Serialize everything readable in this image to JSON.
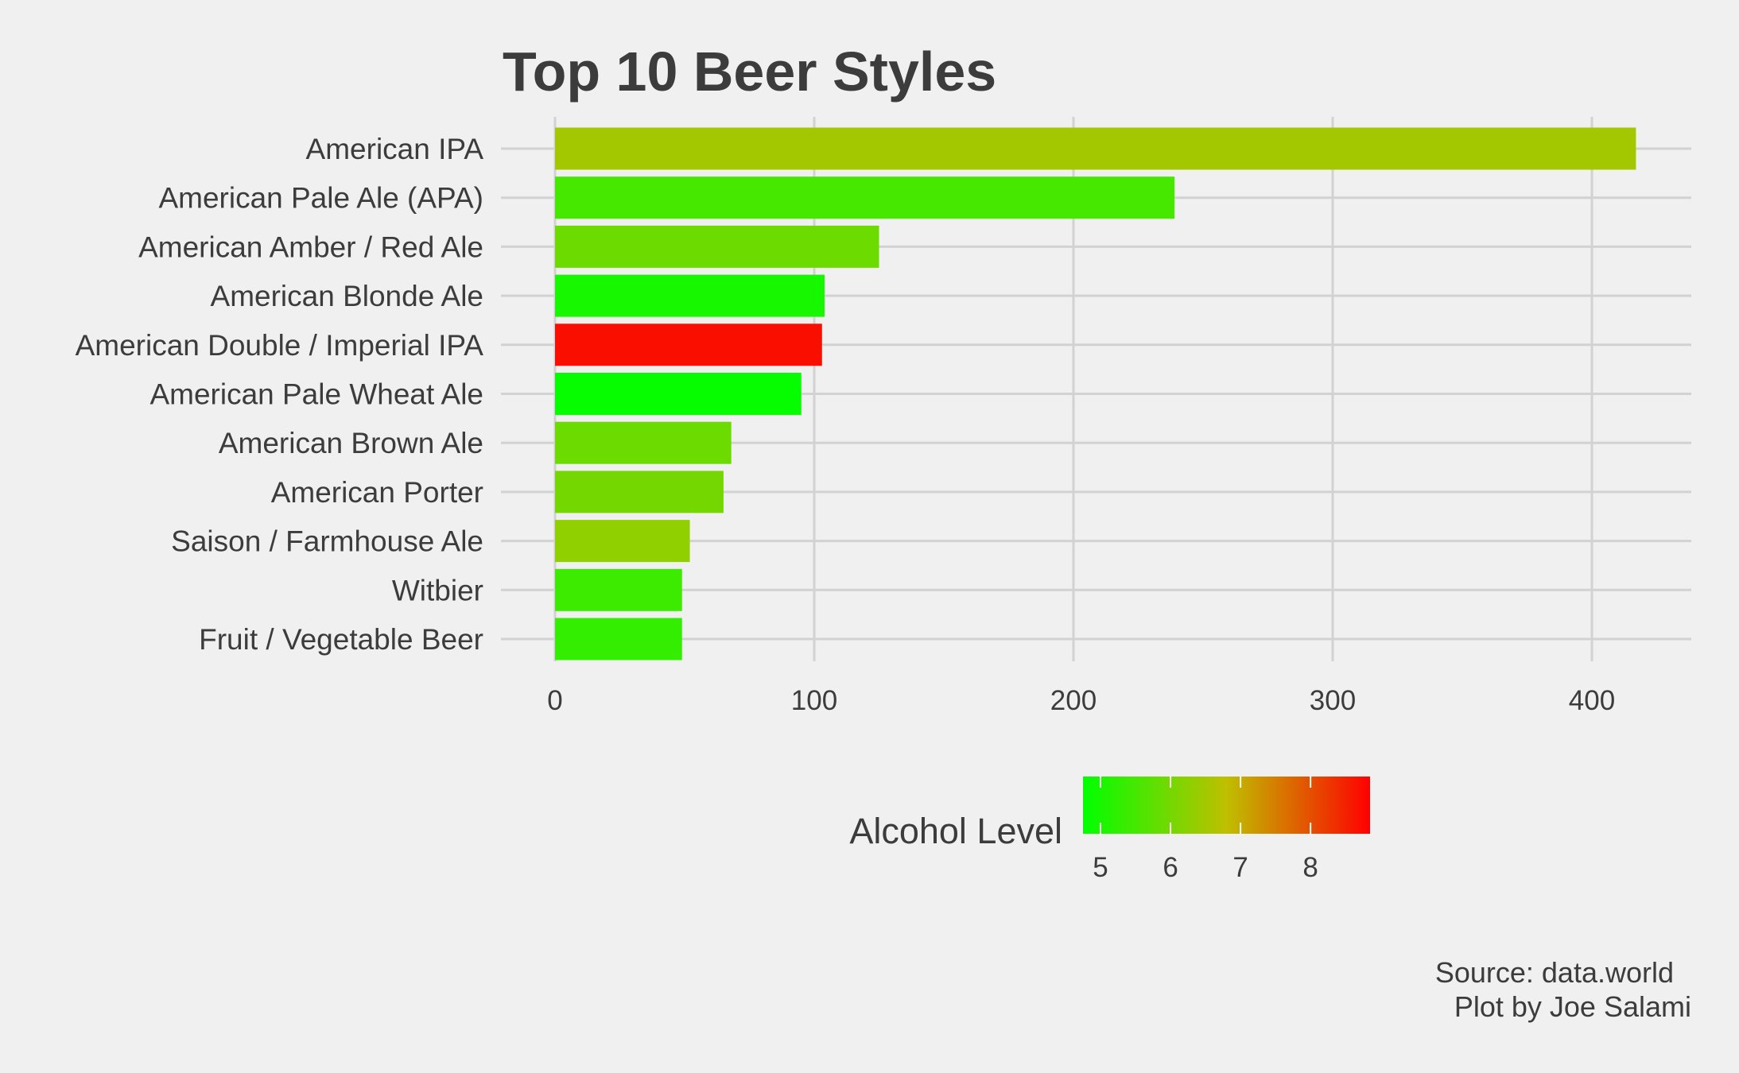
{
  "chart_data": {
    "type": "bar",
    "orientation": "horizontal",
    "title": "Top 10 Beer Styles",
    "categories": [
      "American IPA",
      "American Pale Ale (APA)",
      "American Amber / Red Ale",
      "American Blonde Ale",
      "American Double / Imperial IPA",
      "American Pale Wheat Ale",
      "American Brown Ale",
      "American Porter",
      "Saison / Farmhouse Ale",
      "Witbier",
      "Fruit / Vegetable Beer"
    ],
    "values": [
      417,
      239,
      125,
      104,
      103,
      95,
      68,
      65,
      52,
      49,
      49
    ],
    "alcohol_levels": [
      6.5,
      5.5,
      5.9,
      5.0,
      8.7,
      4.8,
      5.9,
      6.0,
      6.3,
      5.4,
      5.3
    ],
    "xlim": [
      0,
      437
    ],
    "xticks": [
      0,
      100,
      200,
      300,
      400
    ],
    "grid": true,
    "legend": {
      "title": "Alcohol Level",
      "position": "bottom",
      "range": [
        4.75,
        8.85
      ],
      "ticks": [
        5,
        6,
        7,
        8
      ],
      "colors": {
        "low": "#00ff00",
        "high": "#ff0000"
      }
    },
    "caption": [
      "Source: data.world",
      "Plot by Joe Salami"
    ]
  }
}
